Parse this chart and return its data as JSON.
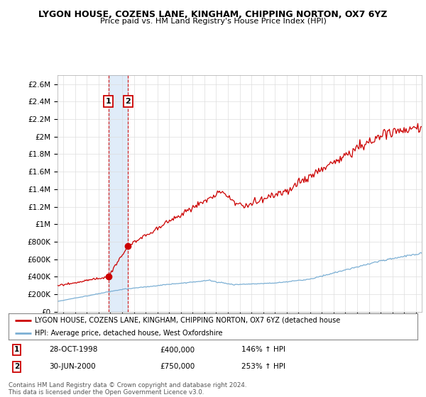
{
  "title": "LYGON HOUSE, COZENS LANE, KINGHAM, CHIPPING NORTON, OX7 6YZ",
  "subtitle": "Price paid vs. HM Land Registry's House Price Index (HPI)",
  "yticks": [
    0,
    200000,
    400000,
    600000,
    800000,
    1000000,
    1200000,
    1400000,
    1600000,
    1800000,
    2000000,
    2200000,
    2400000,
    2600000
  ],
  "ytick_labels": [
    "£0",
    "£200K",
    "£400K",
    "£600K",
    "£800K",
    "£1M",
    "£1.2M",
    "£1.4M",
    "£1.6M",
    "£1.8M",
    "£2M",
    "£2.2M",
    "£2.4M",
    "£2.6M"
  ],
  "xlim_start": 1994.5,
  "xlim_end": 2025.5,
  "ylim_min": 0,
  "ylim_max": 2700000,
  "sale1_x": 1998.83,
  "sale1_y": 400000,
  "sale2_x": 2000.5,
  "sale2_y": 750000,
  "sale1_date": "28-OCT-1998",
  "sale1_price": "£400,000",
  "sale1_hpi": "146% ↑ HPI",
  "sale2_date": "30-JUN-2000",
  "sale2_price": "£750,000",
  "sale2_hpi": "253% ↑ HPI",
  "hpi_line_color": "#7bafd4",
  "sale_line_color": "#cc0000",
  "shade_color": "#cce0f5",
  "legend_label_red": "LYGON HOUSE, COZENS LANE, KINGHAM, CHIPPING NORTON, OX7 6YZ (detached house",
  "legend_label_blue": "HPI: Average price, detached house, West Oxfordshire",
  "footer": "Contains HM Land Registry data © Crown copyright and database right 2024.\nThis data is licensed under the Open Government Licence v3.0.",
  "background_color": "#ffffff",
  "grid_color": "#dddddd"
}
